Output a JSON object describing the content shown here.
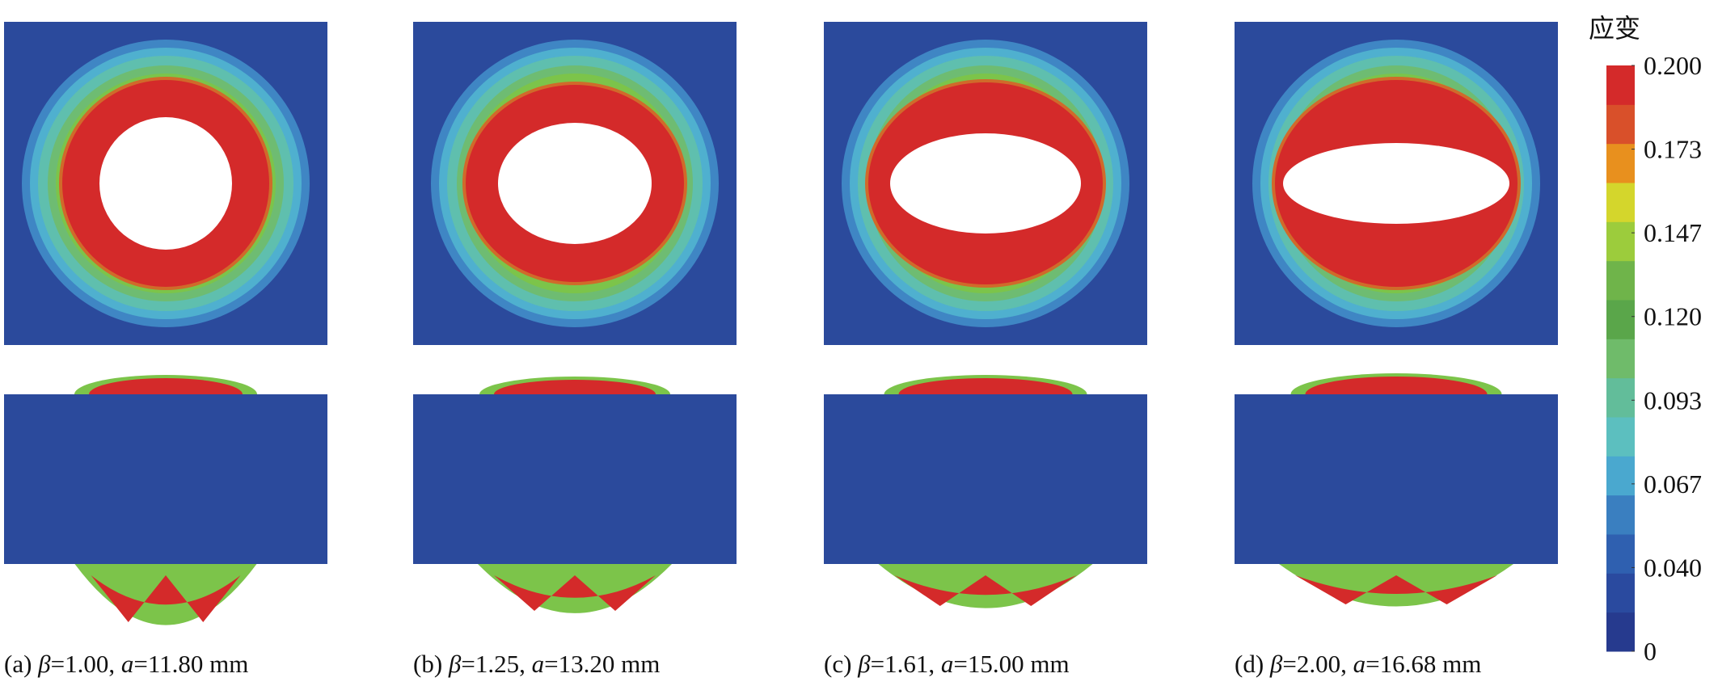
{
  "panels": [
    {
      "caption": [
        "(a) ",
        "β",
        "=1.00, ",
        "a",
        "=11.80 mm"
      ]
    },
    {
      "caption": [
        "(b) ",
        "β",
        "=1.25, ",
        "a",
        "=13.20 mm"
      ]
    },
    {
      "caption": [
        "(c) ",
        "β",
        "=1.61, ",
        "a",
        "=15.00 mm"
      ]
    },
    {
      "caption": [
        "(d) ",
        "β",
        "=2.00, ",
        "a",
        "=16.68 mm"
      ]
    }
  ],
  "colorbar": {
    "title": "应变",
    "ticks": [
      "0.200",
      "0.173",
      "0.147",
      "0.120",
      "0.093",
      "0.067",
      "0.040",
      "0"
    ]
  }
}
